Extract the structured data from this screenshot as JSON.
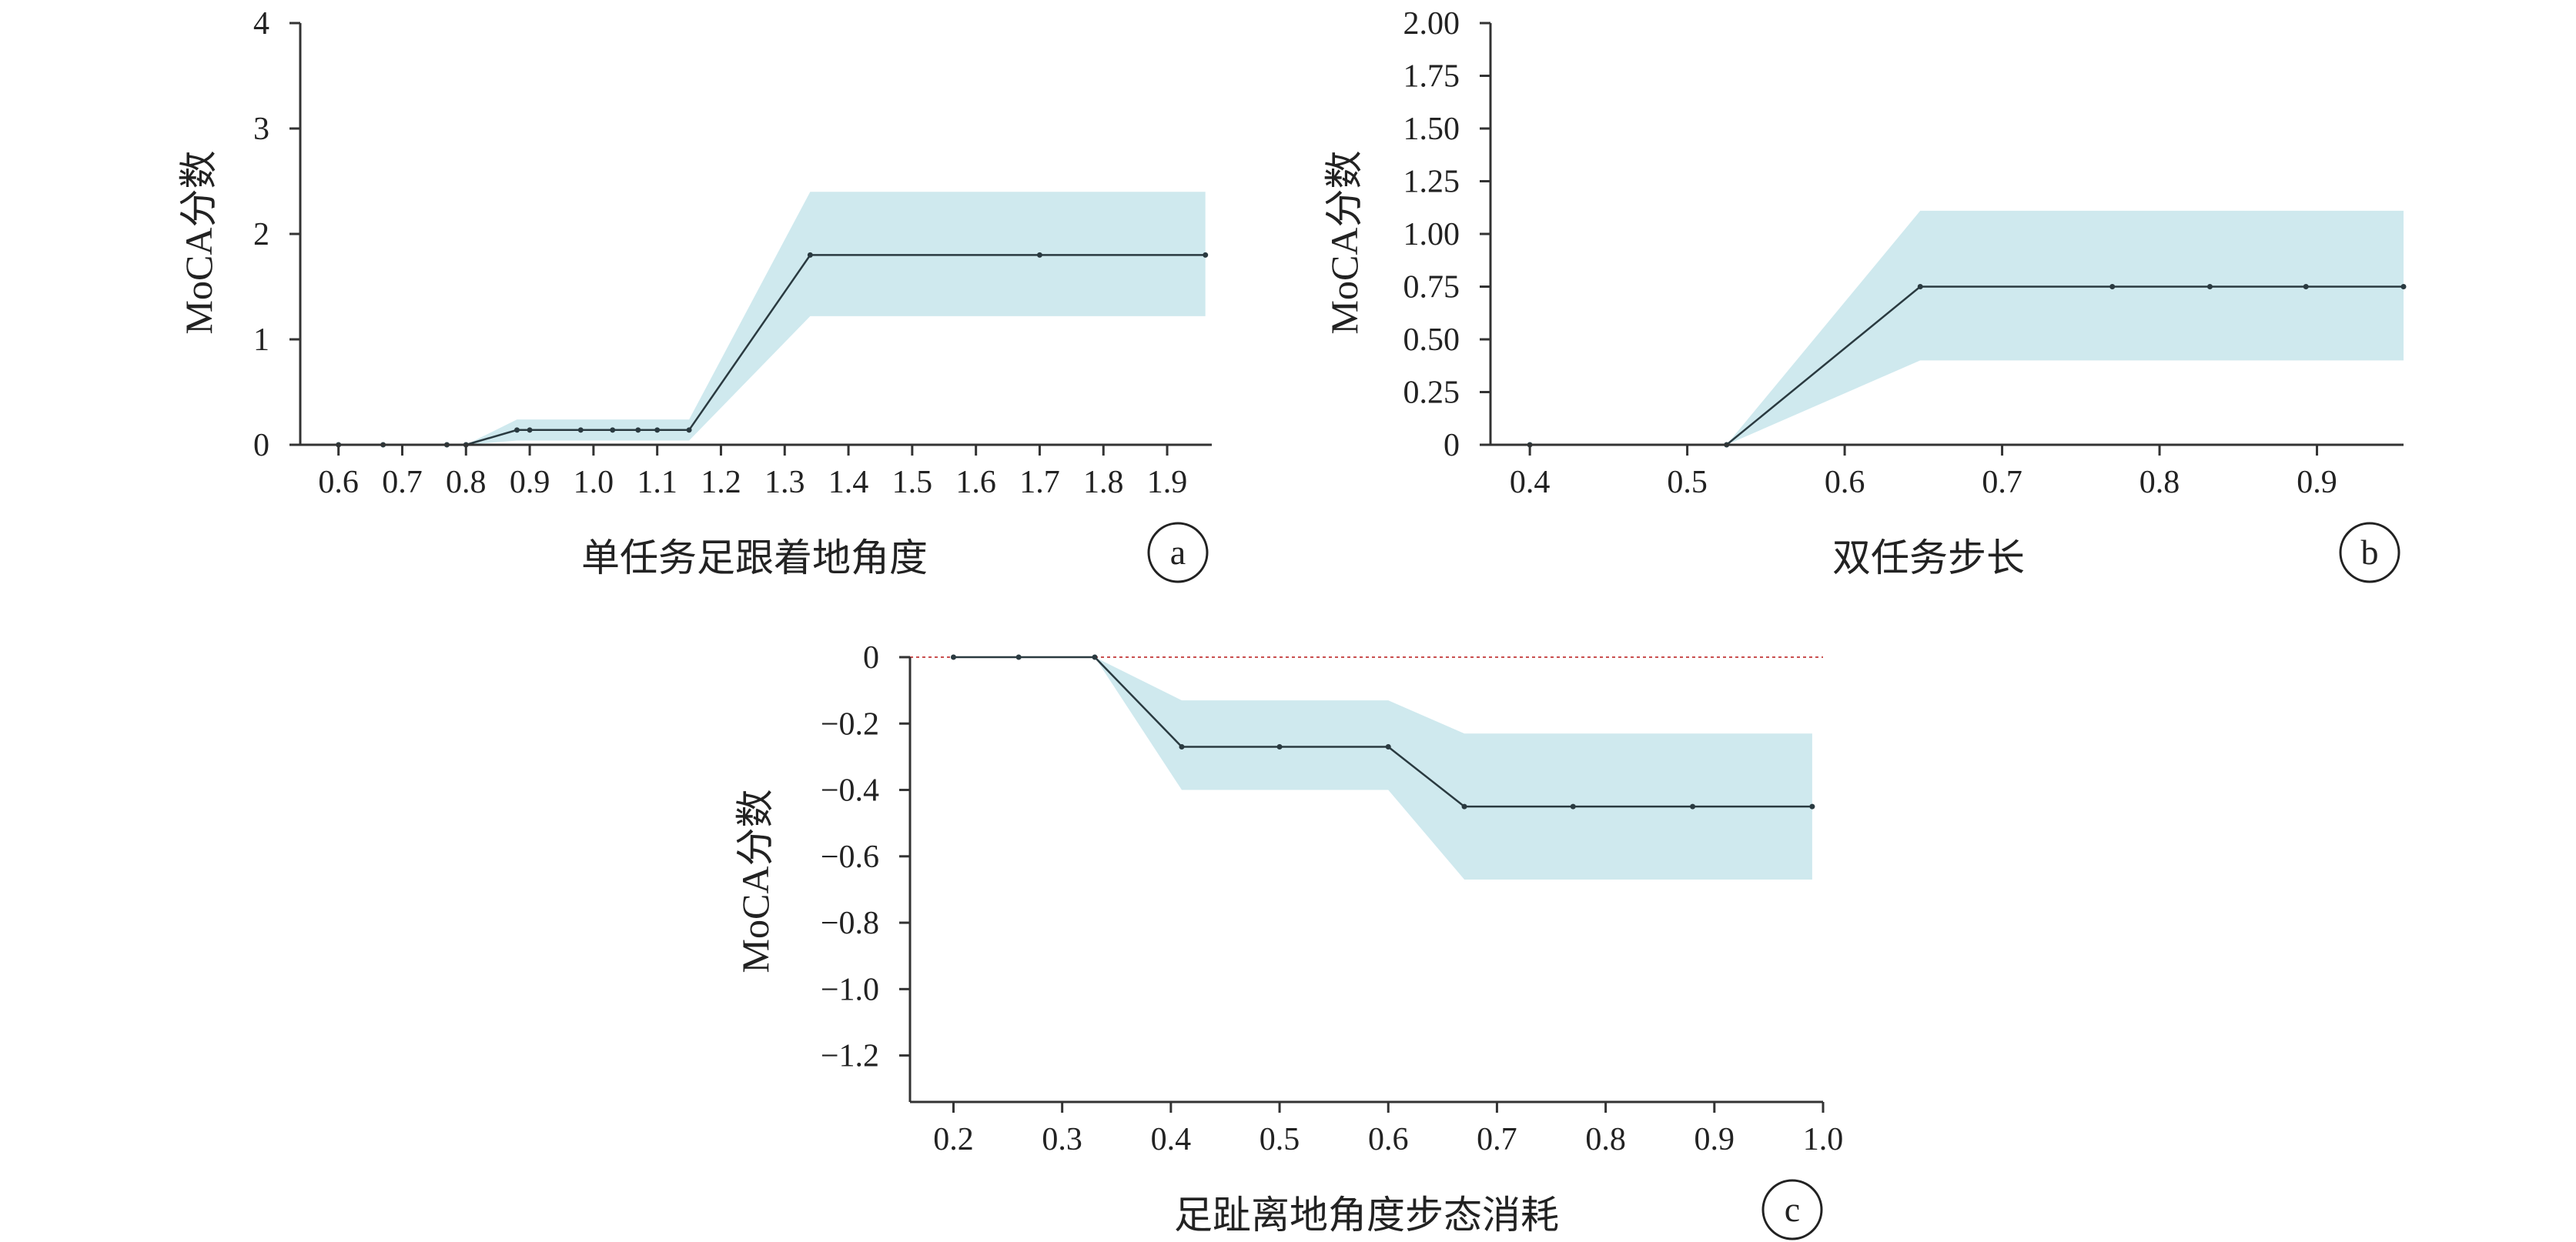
{
  "colors": {
    "band": "#cfe9ee",
    "line": "#2a3a40",
    "ref": "#c94f4f"
  },
  "chart_data": [
    {
      "type": "line",
      "panel": "a",
      "xlabel": "单任务足跟着地角度",
      "ylabel": "MoCA分数",
      "xlim": [
        0.54,
        1.97
      ],
      "ylim": [
        0,
        4
      ],
      "xticks": [
        0.6,
        0.7,
        0.8,
        0.9,
        1.0,
        1.1,
        1.2,
        1.3,
        1.4,
        1.5,
        1.6,
        1.7,
        1.8,
        1.9
      ],
      "xtick_labels": [
        "0.6",
        "0.7",
        "0.8",
        "0.9",
        "1.0",
        "1.1",
        "1.2",
        "1.3",
        "1.4",
        "1.5",
        "1.6",
        "1.7",
        "1.8",
        "1.9"
      ],
      "yticks": [
        0,
        1,
        2,
        3,
        4
      ],
      "ytick_labels": [
        "0",
        "1",
        "2",
        "3",
        "4"
      ],
      "reference_y": 0,
      "series": [
        {
          "x": [
            0.6,
            0.67,
            0.77,
            0.8,
            0.88,
            0.9,
            0.98,
            1.03,
            1.07,
            1.1,
            1.15,
            1.34,
            1.7,
            1.96
          ],
          "y": [
            0,
            0,
            0,
            0,
            0.14,
            0.14,
            0.14,
            0.14,
            0.14,
            0.14,
            0.14,
            1.8,
            1.8,
            1.8
          ],
          "lower": [
            0,
            0,
            0,
            0,
            0.04,
            0.04,
            0.04,
            0.04,
            0.04,
            0.04,
            0.04,
            1.22,
            1.22,
            1.22
          ],
          "upper": [
            0,
            0,
            0,
            0,
            0.24,
            0.24,
            0.24,
            0.24,
            0.24,
            0.24,
            0.24,
            2.4,
            2.4,
            2.4
          ]
        }
      ]
    },
    {
      "type": "line",
      "panel": "b",
      "xlabel": "双任务步长",
      "ylabel": "MoCA分数",
      "xlim": [
        0.375,
        0.955
      ],
      "ylim": [
        0,
        2
      ],
      "xticks": [
        0.4,
        0.5,
        0.6,
        0.7,
        0.8,
        0.9
      ],
      "xtick_labels": [
        "0.4",
        "0.5",
        "0.6",
        "0.7",
        "0.8",
        "0.9"
      ],
      "yticks": [
        0,
        0.25,
        0.5,
        0.75,
        1.0,
        1.25,
        1.5,
        1.75,
        2.0
      ],
      "ytick_labels": [
        "0",
        "0.25",
        "0.50",
        "0.75",
        "1.00",
        "1.25",
        "1.50",
        "1.75",
        "2.00"
      ],
      "reference_y": 0,
      "series": [
        {
          "x": [
            0.4,
            0.525,
            0.648,
            0.77,
            0.832,
            0.893,
            0.955
          ],
          "y": [
            0,
            0,
            0.75,
            0.75,
            0.75,
            0.75,
            0.75
          ],
          "lower": [
            0,
            0,
            0.4,
            0.4,
            0.4,
            0.4,
            0.4
          ],
          "upper": [
            0,
            0,
            1.11,
            1.11,
            1.11,
            1.11,
            1.11
          ]
        }
      ]
    },
    {
      "type": "line",
      "panel": "c",
      "xlabel": "足趾离地角度步态消耗",
      "ylabel": "MoCA分数",
      "xlim": [
        0.16,
        1.0
      ],
      "ylim": [
        -1.34,
        0
      ],
      "xticks": [
        0.2,
        0.3,
        0.4,
        0.5,
        0.6,
        0.7,
        0.8,
        0.9,
        1.0
      ],
      "xtick_labels": [
        "0.2",
        "0.3",
        "0.4",
        "0.5",
        "0.6",
        "0.7",
        "0.8",
        "0.9",
        "1.0"
      ],
      "yticks": [
        0,
        -0.2,
        -0.4,
        -0.6,
        -0.8,
        -1.0,
        -1.2
      ],
      "ytick_labels": [
        "0",
        "−0.2",
        "−0.4",
        "−0.6",
        "−0.8",
        "−1.0",
        "−1.2"
      ],
      "reference_y": 0,
      "series": [
        {
          "x": [
            0.2,
            0.26,
            0.33,
            0.41,
            0.5,
            0.6,
            0.67,
            0.77,
            0.88,
            0.99
          ],
          "y": [
            0,
            0,
            0,
            -0.27,
            -0.27,
            -0.27,
            -0.45,
            -0.45,
            -0.45,
            -0.45
          ],
          "lower": [
            0,
            0,
            0,
            -0.4,
            -0.4,
            -0.4,
            -0.67,
            -0.67,
            -0.67,
            -0.67
          ],
          "upper": [
            0,
            0,
            0,
            -0.13,
            -0.13,
            -0.13,
            -0.23,
            -0.23,
            -0.23,
            -0.23
          ]
        }
      ]
    }
  ]
}
